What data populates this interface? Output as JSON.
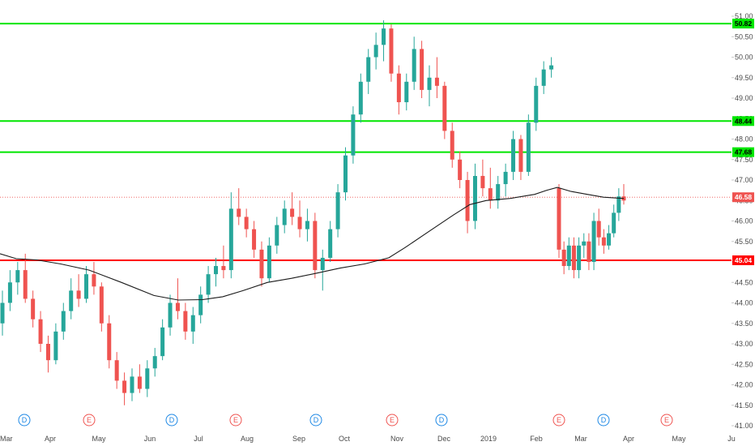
{
  "chart_data": {
    "type": "candlestick",
    "y_axis": {
      "min": 41.0,
      "max": 51.0,
      "side": "right",
      "ticks": [
        41.0,
        41.5,
        42.0,
        42.5,
        43.0,
        43.5,
        44.0,
        44.5,
        45.0,
        45.5,
        46.0,
        46.5,
        47.0,
        47.5,
        48.0,
        48.5,
        49.0,
        49.5,
        50.0,
        50.5,
        51.0
      ],
      "tick_labels": [
        "41.00",
        "41.50",
        "42.00",
        "42.50",
        "43.00",
        "43.50",
        "44.00",
        "44.50",
        "45.00",
        "45.50",
        "46.00",
        "46.50",
        "47.00",
        "47.50",
        "48.00",
        "48.50",
        "49.00",
        "49.50",
        "50.00",
        "50.50",
        "51.00"
      ]
    },
    "x_axis": {
      "labels": [
        "Mar",
        "Apr",
        "May",
        "Jun",
        "Jul",
        "Aug",
        "Sep",
        "Oct",
        "Nov",
        "Dec",
        "2019",
        "Feb",
        "Mar",
        "Apr",
        "May",
        "Ju"
      ]
    },
    "horizontal_levels": [
      {
        "value": 50.82,
        "label": "50.82",
        "color": "#00e600"
      },
      {
        "value": 48.44,
        "label": "48.44",
        "color": "#00e600"
      },
      {
        "value": 47.68,
        "label": "47.68",
        "color": "#00e600"
      },
      {
        "value": 45.04,
        "label": "45.04",
        "color": "#ff0000"
      }
    ],
    "last_price": {
      "value": 46.58,
      "label": "46.58",
      "color": "#ef5350"
    },
    "moving_average": [
      [
        0,
        45.2
      ],
      [
        20,
        45.08
      ],
      [
        45,
        45.05
      ],
      [
        75,
        44.95
      ],
      [
        110,
        44.8
      ],
      [
        150,
        44.5
      ],
      [
        190,
        44.18
      ],
      [
        220,
        44.07
      ],
      [
        250,
        44.08
      ],
      [
        275,
        44.15
      ],
      [
        300,
        44.3
      ],
      [
        330,
        44.5
      ],
      [
        360,
        44.6
      ],
      [
        390,
        44.72
      ],
      [
        420,
        44.85
      ],
      [
        450,
        44.95
      ],
      [
        480,
        45.1
      ],
      [
        500,
        45.35
      ],
      [
        530,
        45.75
      ],
      [
        560,
        46.15
      ],
      [
        580,
        46.4
      ],
      [
        600,
        46.5
      ],
      [
        630,
        46.55
      ],
      [
        660,
        46.65
      ],
      [
        675,
        46.75
      ],
      [
        688,
        46.82
      ],
      [
        705,
        46.72
      ],
      [
        725,
        46.65
      ],
      [
        745,
        46.58
      ],
      [
        770,
        46.55
      ]
    ],
    "candles": [
      {
        "o": 43.5,
        "h": 44.3,
        "l": 43.2,
        "c": 44.0,
        "u": true
      },
      {
        "o": 44.0,
        "h": 44.8,
        "l": 43.8,
        "c": 44.5,
        "u": true
      },
      {
        "o": 44.5,
        "h": 45.0,
        "l": 44.2,
        "c": 44.8,
        "u": true
      },
      {
        "o": 44.8,
        "h": 45.2,
        "l": 44.0,
        "c": 44.1,
        "u": false
      },
      {
        "o": 44.1,
        "h": 44.3,
        "l": 43.4,
        "c": 43.6,
        "u": false
      },
      {
        "o": 43.6,
        "h": 43.8,
        "l": 42.8,
        "c": 43.0,
        "u": false
      },
      {
        "o": 43.0,
        "h": 43.2,
        "l": 42.3,
        "c": 42.6,
        "u": false
      },
      {
        "o": 42.6,
        "h": 43.5,
        "l": 42.5,
        "c": 43.3,
        "u": true
      },
      {
        "o": 43.3,
        "h": 44.0,
        "l": 43.1,
        "c": 43.8,
        "u": true
      },
      {
        "o": 43.8,
        "h": 44.6,
        "l": 43.6,
        "c": 44.3,
        "u": true
      },
      {
        "o": 44.3,
        "h": 44.7,
        "l": 43.9,
        "c": 44.1,
        "u": false
      },
      {
        "o": 44.1,
        "h": 44.9,
        "l": 44.0,
        "c": 44.7,
        "u": true
      },
      {
        "o": 44.7,
        "h": 45.0,
        "l": 44.2,
        "c": 44.4,
        "u": false
      },
      {
        "o": 44.4,
        "h": 44.5,
        "l": 43.3,
        "c": 43.5,
        "u": false
      },
      {
        "o": 43.5,
        "h": 43.7,
        "l": 42.4,
        "c": 42.6,
        "u": false
      },
      {
        "o": 42.6,
        "h": 42.8,
        "l": 41.9,
        "c": 42.1,
        "u": false
      },
      {
        "o": 42.1,
        "h": 42.3,
        "l": 41.5,
        "c": 41.8,
        "u": false
      },
      {
        "o": 41.8,
        "h": 42.4,
        "l": 41.6,
        "c": 42.2,
        "u": true
      },
      {
        "o": 42.2,
        "h": 42.5,
        "l": 41.8,
        "c": 41.9,
        "u": false
      },
      {
        "o": 41.9,
        "h": 42.6,
        "l": 41.7,
        "c": 42.4,
        "u": true
      },
      {
        "o": 42.4,
        "h": 42.9,
        "l": 42.2,
        "c": 42.7,
        "u": true
      },
      {
        "o": 42.7,
        "h": 43.6,
        "l": 42.6,
        "c": 43.4,
        "u": true
      },
      {
        "o": 43.4,
        "h": 44.2,
        "l": 43.2,
        "c": 44.0,
        "u": true
      },
      {
        "o": 44.0,
        "h": 44.6,
        "l": 43.6,
        "c": 43.8,
        "u": false
      },
      {
        "o": 43.8,
        "h": 44.0,
        "l": 43.1,
        "c": 43.3,
        "u": false
      },
      {
        "o": 43.3,
        "h": 43.9,
        "l": 43.0,
        "c": 43.7,
        "u": true
      },
      {
        "o": 43.7,
        "h": 44.4,
        "l": 43.5,
        "c": 44.2,
        "u": true
      },
      {
        "o": 44.2,
        "h": 44.9,
        "l": 44.0,
        "c": 44.7,
        "u": true
      },
      {
        "o": 44.7,
        "h": 45.1,
        "l": 44.4,
        "c": 44.9,
        "u": true
      },
      {
        "o": 44.9,
        "h": 45.4,
        "l": 44.6,
        "c": 44.8,
        "u": false
      },
      {
        "o": 44.8,
        "h": 46.7,
        "l": 44.6,
        "c": 46.3,
        "u": true
      },
      {
        "o": 46.3,
        "h": 46.8,
        "l": 45.9,
        "c": 46.1,
        "u": false
      },
      {
        "o": 46.1,
        "h": 46.3,
        "l": 45.6,
        "c": 45.8,
        "u": false
      },
      {
        "o": 45.8,
        "h": 46.0,
        "l": 45.1,
        "c": 45.3,
        "u": false
      },
      {
        "o": 45.3,
        "h": 45.5,
        "l": 44.4,
        "c": 44.6,
        "u": false
      },
      {
        "o": 44.6,
        "h": 45.6,
        "l": 44.5,
        "c": 45.4,
        "u": true
      },
      {
        "o": 45.4,
        "h": 46.1,
        "l": 45.2,
        "c": 45.9,
        "u": true
      },
      {
        "o": 45.9,
        "h": 46.5,
        "l": 45.7,
        "c": 46.3,
        "u": true
      },
      {
        "o": 46.3,
        "h": 46.7,
        "l": 45.9,
        "c": 46.1,
        "u": false
      },
      {
        "o": 46.1,
        "h": 46.5,
        "l": 45.6,
        "c": 45.8,
        "u": false
      },
      {
        "o": 45.8,
        "h": 46.3,
        "l": 45.5,
        "c": 46.0,
        "u": true
      },
      {
        "o": 46.0,
        "h": 46.2,
        "l": 44.6,
        "c": 44.8,
        "u": false
      },
      {
        "o": 44.8,
        "h": 45.3,
        "l": 44.3,
        "c": 45.1,
        "u": true
      },
      {
        "o": 45.1,
        "h": 46.0,
        "l": 45.0,
        "c": 45.8,
        "u": true
      },
      {
        "o": 45.8,
        "h": 46.9,
        "l": 45.6,
        "c": 46.7,
        "u": true
      },
      {
        "o": 46.7,
        "h": 47.8,
        "l": 46.5,
        "c": 47.6,
        "u": true
      },
      {
        "o": 47.6,
        "h": 48.8,
        "l": 47.4,
        "c": 48.6,
        "u": true
      },
      {
        "o": 48.6,
        "h": 49.6,
        "l": 48.4,
        "c": 49.4,
        "u": true
      },
      {
        "o": 49.4,
        "h": 50.2,
        "l": 49.1,
        "c": 50.0,
        "u": true
      },
      {
        "o": 50.0,
        "h": 50.6,
        "l": 49.7,
        "c": 50.3,
        "u": true
      },
      {
        "o": 50.3,
        "h": 50.9,
        "l": 49.9,
        "c": 50.7,
        "u": true
      },
      {
        "o": 50.7,
        "h": 50.8,
        "l": 49.4,
        "c": 49.6,
        "u": false
      },
      {
        "o": 49.6,
        "h": 49.8,
        "l": 48.6,
        "c": 48.9,
        "u": false
      },
      {
        "o": 48.9,
        "h": 49.6,
        "l": 48.7,
        "c": 49.4,
        "u": true
      },
      {
        "o": 49.4,
        "h": 50.5,
        "l": 49.2,
        "c": 50.2,
        "u": true
      },
      {
        "o": 50.2,
        "h": 50.4,
        "l": 49.0,
        "c": 49.2,
        "u": false
      },
      {
        "o": 49.2,
        "h": 49.8,
        "l": 48.8,
        "c": 49.5,
        "u": true
      },
      {
        "o": 49.5,
        "h": 50.0,
        "l": 49.0,
        "c": 49.3,
        "u": false
      },
      {
        "o": 49.3,
        "h": 49.4,
        "l": 48.0,
        "c": 48.2,
        "u": false
      },
      {
        "o": 48.2,
        "h": 48.4,
        "l": 47.3,
        "c": 47.5,
        "u": false
      },
      {
        "o": 47.5,
        "h": 47.7,
        "l": 46.8,
        "c": 47.0,
        "u": false
      },
      {
        "o": 47.0,
        "h": 47.2,
        "l": 45.7,
        "c": 46.0,
        "u": false
      },
      {
        "o": 46.0,
        "h": 47.4,
        "l": 45.8,
        "c": 47.1,
        "u": true
      },
      {
        "o": 47.1,
        "h": 47.5,
        "l": 46.6,
        "c": 46.8,
        "u": false
      },
      {
        "o": 46.8,
        "h": 47.3,
        "l": 46.3,
        "c": 46.5,
        "u": false
      },
      {
        "o": 46.5,
        "h": 47.1,
        "l": 46.3,
        "c": 46.9,
        "u": true
      },
      {
        "o": 46.9,
        "h": 47.4,
        "l": 46.6,
        "c": 47.2,
        "u": true
      },
      {
        "o": 47.2,
        "h": 48.2,
        "l": 47.0,
        "c": 48.0,
        "u": true
      },
      {
        "o": 48.0,
        "h": 48.1,
        "l": 47.0,
        "c": 47.2,
        "u": false
      },
      {
        "o": 47.2,
        "h": 48.6,
        "l": 47.1,
        "c": 48.4,
        "u": true
      },
      {
        "o": 48.4,
        "h": 49.5,
        "l": 48.2,
        "c": 49.3,
        "u": true
      },
      {
        "o": 49.3,
        "h": 49.9,
        "l": 49.1,
        "c": 49.7,
        "u": true
      },
      {
        "o": 49.7,
        "h": 50.0,
        "l": 49.5,
        "c": 49.8,
        "u": true
      },
      {
        "o": 46.8,
        "h": 46.9,
        "l": 45.1,
        "c": 45.3,
        "u": false
      },
      {
        "o": 45.3,
        "h": 45.5,
        "l": 44.7,
        "c": 44.9,
        "u": false
      },
      {
        "o": 44.9,
        "h": 45.6,
        "l": 44.8,
        "c": 45.4,
        "u": true
      },
      {
        "o": 45.4,
        "h": 45.6,
        "l": 44.6,
        "c": 44.8,
        "u": false
      },
      {
        "o": 44.8,
        "h": 45.6,
        "l": 44.6,
        "c": 45.4,
        "u": true
      },
      {
        "o": 45.4,
        "h": 45.7,
        "l": 45.1,
        "c": 45.5,
        "u": true
      },
      {
        "o": 45.5,
        "h": 45.7,
        "l": 44.8,
        "c": 45.0,
        "u": false
      },
      {
        "o": 45.0,
        "h": 46.2,
        "l": 44.8,
        "c": 46.0,
        "u": true
      },
      {
        "o": 46.0,
        "h": 46.3,
        "l": 45.4,
        "c": 45.6,
        "u": false
      },
      {
        "o": 45.6,
        "h": 45.8,
        "l": 45.2,
        "c": 45.4,
        "u": false
      },
      {
        "o": 45.4,
        "h": 45.9,
        "l": 45.3,
        "c": 45.7,
        "u": true
      },
      {
        "o": 45.7,
        "h": 46.4,
        "l": 45.6,
        "c": 46.2,
        "u": true
      },
      {
        "o": 46.2,
        "h": 46.8,
        "l": 46.0,
        "c": 46.6,
        "u": true
      },
      {
        "o": 46.6,
        "h": 46.9,
        "l": 46.4,
        "c": 46.5,
        "u": false
      }
    ],
    "event_markers": [
      {
        "letter": "D",
        "color": "#1e88e5"
      },
      {
        "letter": "E",
        "color": "#ef5350"
      },
      {
        "letter": "D",
        "color": "#1e88e5"
      },
      {
        "letter": "E",
        "color": "#ef5350"
      },
      {
        "letter": "D",
        "color": "#1e88e5"
      },
      {
        "letter": "E",
        "color": "#ef5350"
      },
      {
        "letter": "D",
        "color": "#1e88e5"
      },
      {
        "letter": "E",
        "color": "#ef5350"
      },
      {
        "letter": "D",
        "color": "#1e88e5"
      },
      {
        "letter": "E",
        "color": "#ef5350"
      }
    ],
    "colors": {
      "up": "#26a69a",
      "down": "#ef5350",
      "ma": "#1a1a1a",
      "axis_text": "#4a4a4a"
    }
  }
}
